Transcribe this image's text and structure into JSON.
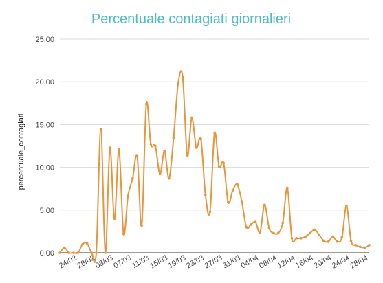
{
  "chart_data": {
    "type": "line",
    "title": "Percentuale contagiati giornalieri",
    "xlabel": "",
    "ylabel": "percentuale_contagiati",
    "ylim": [
      0,
      25
    ],
    "y_ticks": [
      "0,00",
      "5,00",
      "10,00",
      "15,00",
      "20,00",
      "25,00"
    ],
    "x_tick_labels": [
      "24/02",
      "28/02",
      "03/03",
      "07/03",
      "11/03",
      "15/03",
      "19/03",
      "23/03",
      "27/03",
      "31/03",
      "04/04",
      "08/04",
      "12/04",
      "16/04",
      "20/04",
      "24/04",
      "28/04"
    ],
    "grid": true,
    "legend": "none",
    "colors": {
      "title": "#4cbcbe",
      "line": "#e8943a",
      "grid": "#dadada",
      "axis": "#333333"
    },
    "x": [
      "22/02",
      "23/02",
      "24/02",
      "25/02",
      "26/02",
      "27/02",
      "28/02",
      "29/02",
      "01/03",
      "02/03",
      "03/03",
      "04/03",
      "05/03",
      "06/03",
      "07/03",
      "08/03",
      "09/03",
      "10/03",
      "11/03",
      "12/03",
      "13/03",
      "14/03",
      "15/03",
      "16/03",
      "17/03",
      "18/03",
      "19/03",
      "20/03",
      "21/03",
      "22/03",
      "23/03",
      "24/03",
      "25/03",
      "26/03",
      "27/03",
      "28/03",
      "29/03",
      "30/03",
      "31/03",
      "01/04",
      "02/04",
      "03/04",
      "04/04",
      "05/04",
      "06/04",
      "07/04",
      "08/04",
      "09/04",
      "10/04",
      "11/04",
      "12/04",
      "13/04",
      "14/04",
      "15/04",
      "16/04",
      "17/04",
      "18/04",
      "19/04",
      "20/04",
      "21/04",
      "22/04",
      "23/04",
      "24/04",
      "25/04",
      "26/04",
      "27/04",
      "28/04",
      "29/04",
      "30/04"
    ],
    "values": [
      0.0,
      0.6,
      0.0,
      0.0,
      0.0,
      1.0,
      1.1,
      0.0,
      0.0,
      14.5,
      0.0,
      12.3,
      4.0,
      12.1,
      2.2,
      6.7,
      8.7,
      11.3,
      3.2,
      17.4,
      12.7,
      12.5,
      9.2,
      11.9,
      8.7,
      13.4,
      19.8,
      20.6,
      11.4,
      15.8,
      12.3,
      13.3,
      6.8,
      4.8,
      14.0,
      10.1,
      10.5,
      5.9,
      7.3,
      8.0,
      6.0,
      3.0,
      3.3,
      3.6,
      2.4,
      5.6,
      2.9,
      2.3,
      2.3,
      3.5,
      7.6,
      1.7,
      1.7,
      1.7,
      1.9,
      2.3,
      2.7,
      2.1,
      1.4,
      1.3,
      1.9,
      1.3,
      1.8,
      5.5,
      1.4,
      0.9,
      0.7,
      0.6,
      0.9
    ]
  }
}
